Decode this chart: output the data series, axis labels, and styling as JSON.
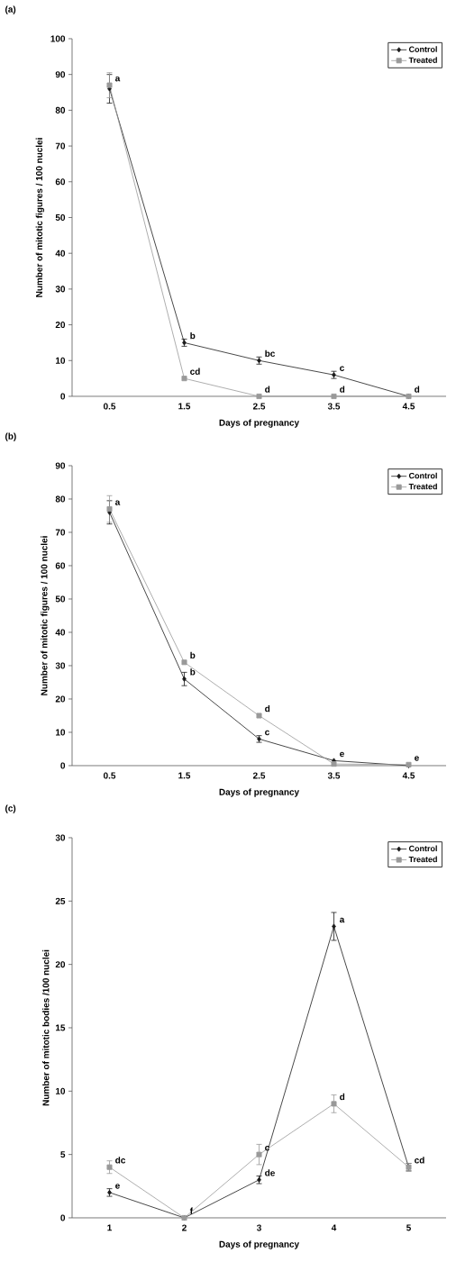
{
  "chart_data": [
    {
      "type": "line",
      "title": "(a)",
      "xlabel": "Days of pregnancy",
      "ylabel": "Number of mitotic figures / 100 nuclei",
      "categories": [
        "0.5",
        "1.5",
        "2.5",
        "3.5",
        "4.5"
      ],
      "ylim": [
        0,
        100
      ],
      "yticks": [
        0,
        10,
        20,
        30,
        40,
        50,
        60,
        70,
        80,
        90,
        100
      ],
      "legend": "top right",
      "grid": false,
      "series": [
        {
          "name": "Control",
          "color": "#1a1a1a",
          "marker": "diamond",
          "values": [
            86,
            15,
            10,
            6,
            0
          ],
          "errors": [
            4,
            1,
            1,
            1,
            null
          ]
        },
        {
          "name": "Treated",
          "color": "#999999",
          "marker": "square",
          "values": [
            87,
            5,
            0,
            0,
            0
          ],
          "errors": [
            3.5,
            null,
            null,
            null,
            null
          ]
        }
      ],
      "annotations": [
        {
          "text": "a",
          "x": "0.5",
          "y": 87
        },
        {
          "text": "b",
          "x": "1.5",
          "y": 15
        },
        {
          "text": "cd",
          "x": "1.5",
          "y": 5
        },
        {
          "text": "bc",
          "x": "2.5",
          "y": 10
        },
        {
          "text": "d",
          "x": "2.5",
          "y": 0
        },
        {
          "text": "c",
          "x": "3.5",
          "y": 6
        },
        {
          "text": "d",
          "x": "3.5",
          "y": 0
        },
        {
          "text": "d",
          "x": "4.5",
          "y": 0
        }
      ]
    },
    {
      "type": "line",
      "title": "(b)",
      "xlabel": "Days of pregnancy",
      "ylabel": "Number of mitotic figures / 100 nuclei",
      "categories": [
        "0.5",
        "1.5",
        "2.5",
        "3.5",
        "4.5"
      ],
      "ylim": [
        0,
        90
      ],
      "yticks": [
        0,
        10,
        20,
        30,
        40,
        50,
        60,
        70,
        80,
        90
      ],
      "legend": "top right",
      "grid": false,
      "series": [
        {
          "name": "Control",
          "color": "#1a1a1a",
          "marker": "diamond",
          "values": [
            76,
            26,
            8,
            1.5,
            0
          ],
          "errors": [
            3.5,
            2,
            1,
            null,
            null
          ]
        },
        {
          "name": "Treated",
          "color": "#999999",
          "marker": "square",
          "values": [
            77,
            31,
            15,
            0.5,
            0.3
          ],
          "errors": [
            4,
            null,
            null,
            null,
            null
          ]
        }
      ],
      "annotations": [
        {
          "text": "a",
          "x": "0.5",
          "y": 77
        },
        {
          "text": "b",
          "x": "1.5",
          "y": 31
        },
        {
          "text": "b",
          "x": "1.5",
          "y": 26
        },
        {
          "text": "d",
          "x": "2.5",
          "y": 15
        },
        {
          "text": "c",
          "x": "2.5",
          "y": 8
        },
        {
          "text": "e",
          "x": "3.5",
          "y": 1.5
        },
        {
          "text": "e",
          "x": "4.5",
          "y": 0.3
        }
      ]
    },
    {
      "type": "line",
      "title": "(c)",
      "xlabel": "Days of pregnancy",
      "ylabel": "Number of mitotic bodies /100 nuclei",
      "categories": [
        "1",
        "2",
        "3",
        "4",
        "5"
      ],
      "ylim": [
        0,
        30
      ],
      "yticks": [
        0,
        5,
        10,
        15,
        20,
        25,
        30
      ],
      "legend": "top right",
      "grid": false,
      "series": [
        {
          "name": "Control",
          "color": "#1a1a1a",
          "marker": "diamond",
          "values": [
            2,
            0,
            3,
            23,
            4
          ],
          "errors": [
            0.3,
            null,
            0.3,
            1.1,
            0.3
          ]
        },
        {
          "name": "Treated",
          "color": "#999999",
          "marker": "square",
          "values": [
            4,
            0,
            5,
            9,
            4
          ],
          "errors": [
            0.5,
            null,
            0.8,
            0.7,
            0.3
          ]
        }
      ],
      "annotations": [
        {
          "text": "dc",
          "x": "1",
          "y": 4
        },
        {
          "text": "e",
          "x": "1",
          "y": 2
        },
        {
          "text": "f",
          "x": "2",
          "y": 0
        },
        {
          "text": "c",
          "x": "3",
          "y": 5
        },
        {
          "text": "de",
          "x": "3",
          "y": 3
        },
        {
          "text": "a",
          "x": "4",
          "y": 23
        },
        {
          "text": "d",
          "x": "4",
          "y": 9
        },
        {
          "text": "cd",
          "x": "5",
          "y": 4
        }
      ]
    }
  ]
}
